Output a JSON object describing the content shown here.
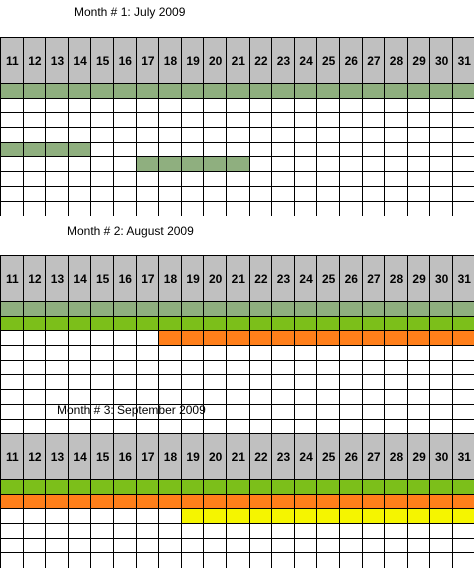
{
  "months": [
    {
      "title": "Month # 1: July 2009",
      "days": [
        "11",
        "12",
        "13",
        "14",
        "15",
        "16",
        "17",
        "18",
        "19",
        "20",
        "21",
        "22",
        "23",
        "24",
        "25",
        "26",
        "27",
        "28",
        "29",
        "30",
        "31"
      ],
      "rows": [
        [
          {
            "from": 0,
            "to": 20,
            "color": "#8faf7f"
          }
        ],
        [],
        [],
        [],
        [
          {
            "from": 0,
            "to": 3,
            "color": "#8faf7f"
          }
        ],
        [
          {
            "from": 6,
            "to": 10,
            "color": "#8faf7f"
          }
        ],
        [],
        [],
        []
      ]
    },
    {
      "title": "Month # 2: August 2009",
      "days": [
        "11",
        "12",
        "13",
        "14",
        "15",
        "16",
        "17",
        "18",
        "19",
        "20",
        "21",
        "22",
        "23",
        "24",
        "25",
        "26",
        "27",
        "28",
        "29",
        "30",
        "31"
      ],
      "rows": [
        [
          {
            "from": 0,
            "to": 20,
            "color": "#8faf7f"
          }
        ],
        [
          {
            "from": 0,
            "to": 20,
            "color": "#7cbf1a"
          }
        ],
        [
          {
            "from": 7,
            "to": 20,
            "color": "#ff7f1a"
          }
        ],
        [],
        [],
        [],
        [],
        [],
        []
      ]
    },
    {
      "title": "Month # 3: September 2009",
      "days": [
        "11",
        "12",
        "13",
        "14",
        "15",
        "16",
        "17",
        "18",
        "19",
        "20",
        "21",
        "22",
        "23",
        "24",
        "25",
        "26",
        "27",
        "28",
        "29",
        "30",
        "31"
      ],
      "rows": [
        [
          {
            "from": 0,
            "to": 20,
            "color": "#7cbf1a"
          }
        ],
        [
          {
            "from": 0,
            "to": 20,
            "color": "#ff7f1a"
          }
        ],
        [
          {
            "from": 8,
            "to": 20,
            "color": "#f5f500"
          }
        ],
        [],
        [],
        []
      ]
    }
  ]
}
